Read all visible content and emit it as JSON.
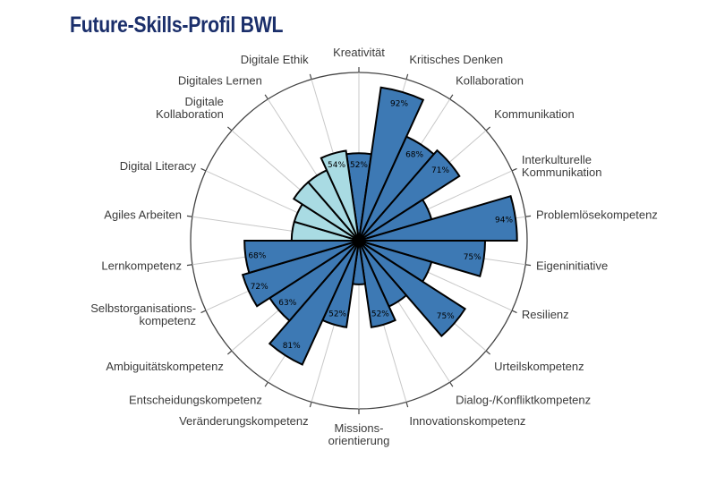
{
  "title": "Future-Skills-Profil BWL",
  "chart_data": {
    "type": "polar-bar",
    "title": "Future-Skills-Profil BWL",
    "rmax": 100,
    "grid": true,
    "colors": {
      "primary": "#3d79b4",
      "digital": "#a9dbe3",
      "outline": "#000000"
    },
    "categories": [
      {
        "label": [
          "Kreativität"
        ],
        "value": 52,
        "group": "primary",
        "show_value": true
      },
      {
        "label": [
          "Kritisches Denken"
        ],
        "value": 92,
        "group": "primary",
        "show_value": true
      },
      {
        "label": [
          "Kollaboration"
        ],
        "value": 68,
        "group": "primary",
        "show_value": true
      },
      {
        "label": [
          "Kommunikation"
        ],
        "value": 71,
        "group": "primary",
        "show_value": true
      },
      {
        "label": [
          "Interkulturelle",
          "Kommunikation"
        ],
        "value": 45,
        "group": "primary",
        "show_value": false
      },
      {
        "label": [
          "Problemlösekompetenz"
        ],
        "value": 94,
        "group": "primary",
        "show_value": true
      },
      {
        "label": [
          "Eigeninitiative"
        ],
        "value": 75,
        "group": "primary",
        "show_value": true
      },
      {
        "label": [
          "Resilienz"
        ],
        "value": 45,
        "group": "primary",
        "show_value": false
      },
      {
        "label": [
          "Urteilskompetenz"
        ],
        "value": 75,
        "group": "primary",
        "show_value": true
      },
      {
        "label": [
          "Dialog-/Konfliktkompetenz"
        ],
        "value": 43,
        "group": "primary",
        "show_value": false
      },
      {
        "label": [
          "Innovationskompetenz"
        ],
        "value": 52,
        "group": "primary",
        "show_value": true
      },
      {
        "label": [
          "Missions-",
          "orientierung"
        ],
        "value": 26,
        "group": "primary",
        "show_value": false
      },
      {
        "label": [
          "Veränderungskompetenz"
        ],
        "value": 52,
        "group": "primary",
        "show_value": true
      },
      {
        "label": [
          "Entscheidungskompetenz"
        ],
        "value": 81,
        "group": "primary",
        "show_value": true
      },
      {
        "label": [
          "Ambiguitätskompetenz"
        ],
        "value": 63,
        "group": "primary",
        "show_value": true
      },
      {
        "label": [
          "Selbstorganisations-",
          "kompetenz"
        ],
        "value": 72,
        "group": "primary",
        "show_value": true
      },
      {
        "label": [
          "Lernkompetenz"
        ],
        "value": 68,
        "group": "primary",
        "show_value": true
      },
      {
        "label": [
          "Agiles Arbeiten"
        ],
        "value": 40,
        "group": "digital",
        "show_value": false
      },
      {
        "label": [
          "Digital Literacy"
        ],
        "value": 40,
        "group": "digital",
        "show_value": false
      },
      {
        "label": [
          "Digitale",
          "Kollaboration"
        ],
        "value": 46,
        "group": "digital",
        "show_value": false
      },
      {
        "label": [
          "Digitales Lernen"
        ],
        "value": 46,
        "group": "digital",
        "show_value": false
      },
      {
        "label": [
          "Digitale Ethik"
        ],
        "value": 54,
        "group": "digital",
        "show_value": true
      }
    ]
  }
}
